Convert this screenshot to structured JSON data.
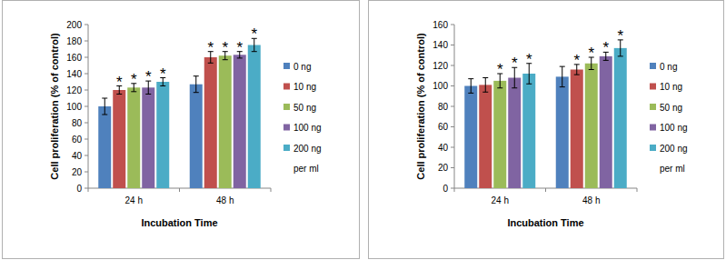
{
  "chart_data": [
    {
      "type": "bar",
      "y_label": "Cell proliferation (% of control)",
      "x_label": "Incubation Time",
      "legend_subtitle": "per ml",
      "significance_mark": "*",
      "categories": [
        "24 h",
        "48 h"
      ],
      "ylim": [
        0,
        200
      ],
      "yticks": [
        0,
        20,
        40,
        60,
        80,
        100,
        120,
        140,
        160,
        180,
        200
      ],
      "grid": false,
      "legend": "right",
      "series": [
        {
          "name": "0 ng",
          "color": "#4f81bd",
          "values": [
            100,
            127
          ],
          "errors": [
            10,
            10
          ],
          "significant": [
            false,
            false
          ]
        },
        {
          "name": "10 ng",
          "color": "#c0504d",
          "values": [
            120,
            160
          ],
          "errors": [
            5,
            7
          ],
          "significant": [
            true,
            true
          ]
        },
        {
          "name": "50 ng",
          "color": "#9bbb59",
          "values": [
            123,
            162
          ],
          "errors": [
            5,
            5
          ],
          "significant": [
            true,
            true
          ]
        },
        {
          "name": "100 ng",
          "color": "#8064a2",
          "values": [
            123,
            163
          ],
          "errors": [
            8,
            4
          ],
          "significant": [
            true,
            true
          ]
        },
        {
          "name": "200 ng",
          "color": "#4bacc6",
          "values": [
            130,
            175
          ],
          "errors": [
            5,
            8
          ],
          "significant": [
            true,
            true
          ]
        }
      ]
    },
    {
      "type": "bar",
      "y_label": "Cell proliferation (% of control)",
      "x_label": "Incubation Time",
      "legend_subtitle": "per ml",
      "significance_mark": "*",
      "categories": [
        "24 h",
        "48 h"
      ],
      "ylim": [
        0,
        160
      ],
      "yticks": [
        0,
        20,
        40,
        60,
        80,
        100,
        120,
        140,
        160
      ],
      "grid": false,
      "legend": "right",
      "series": [
        {
          "name": "0 ng",
          "color": "#4f81bd",
          "values": [
            100,
            109
          ],
          "errors": [
            7,
            10
          ],
          "significant": [
            false,
            false
          ]
        },
        {
          "name": "10 ng",
          "color": "#c0504d",
          "values": [
            101,
            116
          ],
          "errors": [
            7,
            5
          ],
          "significant": [
            false,
            true
          ]
        },
        {
          "name": "50 ng",
          "color": "#9bbb59",
          "values": [
            105,
            122
          ],
          "errors": [
            7,
            6
          ],
          "significant": [
            true,
            true
          ]
        },
        {
          "name": "100 ng",
          "color": "#8064a2",
          "values": [
            108,
            129
          ],
          "errors": [
            10,
            4
          ],
          "significant": [
            true,
            true
          ]
        },
        {
          "name": "200 ng",
          "color": "#4bacc6",
          "values": [
            112,
            137
          ],
          "errors": [
            10,
            8
          ],
          "significant": [
            true,
            true
          ]
        }
      ]
    }
  ]
}
